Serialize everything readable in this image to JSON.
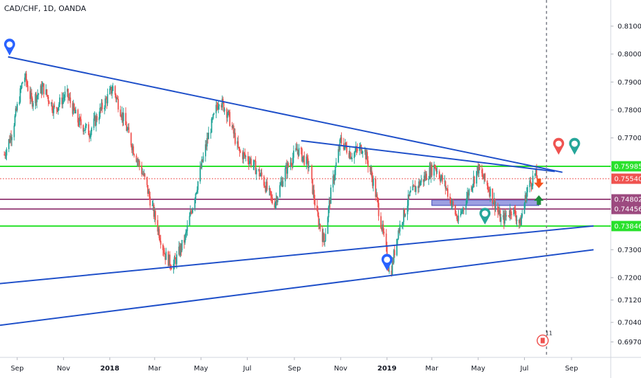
{
  "header": {
    "title": "CAD/CHF, 1D, OANDA"
  },
  "colors": {
    "up": "#26a69a",
    "down": "#ef5350",
    "trend": "#1e4fc9",
    "support": "#28e12b",
    "pivot": "#9c4a7f",
    "zone": "#7b7fd8",
    "current": "#ef5350",
    "marker_blue": "#2962ff",
    "marker_red": "#ef5350",
    "marker_green": "#26a69a"
  },
  "chart_data": {
    "type": "candlestick",
    "y_axis": {
      "range": [
        0.6945,
        0.818
      ],
      "ticks": [
        "0.81000",
        "0.80000",
        "0.79000",
        "0.78000",
        "0.77000",
        "0.73000",
        "0.72000",
        "0.71200",
        "0.70400",
        "0.69700"
      ],
      "ticks_values": [
        0.81,
        0.8,
        0.79,
        0.78,
        0.77,
        0.73,
        0.72,
        0.712,
        0.704,
        0.697
      ]
    },
    "x_axis": {
      "labels": [
        {
          "text": "Sep",
          "date": "2017-09-01",
          "bold": false
        },
        {
          "text": "Nov",
          "date": "2017-11-01",
          "bold": false
        },
        {
          "text": "2018",
          "date": "2018-01-01",
          "bold": true
        },
        {
          "text": "Mar",
          "date": "2018-03-01",
          "bold": false
        },
        {
          "text": "May",
          "date": "2018-05-01",
          "bold": false
        },
        {
          "text": "Jul",
          "date": "2018-07-01",
          "bold": false
        },
        {
          "text": "Sep",
          "date": "2018-09-01",
          "bold": false
        },
        {
          "text": "Nov",
          "date": "2018-11-01",
          "bold": false
        },
        {
          "text": "2019",
          "date": "2019-01-01",
          "bold": true
        },
        {
          "text": "Mar",
          "date": "2019-03-01",
          "bold": false
        },
        {
          "text": "May",
          "date": "2019-05-01",
          "bold": false
        },
        {
          "text": "Jul",
          "date": "2019-07-01",
          "bold": false
        },
        {
          "text": "Sep",
          "date": "2019-09-01",
          "bold": false
        }
      ]
    },
    "price_path": [
      [
        "2017-08-15",
        0.764
      ],
      [
        "2017-08-25",
        0.772
      ],
      [
        "2017-09-05",
        0.786
      ],
      [
        "2017-09-10",
        0.793
      ],
      [
        "2017-09-20",
        0.783
      ],
      [
        "2017-10-05",
        0.788
      ],
      [
        "2017-10-20",
        0.78
      ],
      [
        "2017-11-05",
        0.786
      ],
      [
        "2017-11-20",
        0.776
      ],
      [
        "2017-12-05",
        0.772
      ],
      [
        "2017-12-20",
        0.78
      ],
      [
        "2018-01-05",
        0.788
      ],
      [
        "2018-01-15",
        0.78
      ],
      [
        "2018-02-01",
        0.766
      ],
      [
        "2018-02-15",
        0.756
      ],
      [
        "2018-03-01",
        0.742
      ],
      [
        "2018-03-15",
        0.728
      ],
      [
        "2018-03-25",
        0.724
      ],
      [
        "2018-04-10",
        0.734
      ],
      [
        "2018-04-25",
        0.752
      ],
      [
        "2018-05-10",
        0.77
      ],
      [
        "2018-05-25",
        0.784
      ],
      [
        "2018-06-05",
        0.779
      ],
      [
        "2018-06-20",
        0.765
      ],
      [
        "2018-07-05",
        0.762
      ],
      [
        "2018-07-20",
        0.756
      ],
      [
        "2018-08-05",
        0.746
      ],
      [
        "2018-08-20",
        0.758
      ],
      [
        "2018-09-05",
        0.766
      ],
      [
        "2018-09-20",
        0.76
      ],
      [
        "2018-10-01",
        0.742
      ],
      [
        "2018-10-10",
        0.733
      ],
      [
        "2018-10-20",
        0.752
      ],
      [
        "2018-11-01",
        0.769
      ],
      [
        "2018-11-15",
        0.764
      ],
      [
        "2018-12-01",
        0.767
      ],
      [
        "2018-12-15",
        0.753
      ],
      [
        "2019-01-01",
        0.728
      ],
      [
        "2019-01-05",
        0.72
      ],
      [
        "2019-01-15",
        0.736
      ],
      [
        "2019-02-01",
        0.75
      ],
      [
        "2019-02-20",
        0.756
      ],
      [
        "2019-03-05",
        0.76
      ],
      [
        "2019-03-20",
        0.752
      ],
      [
        "2019-04-05",
        0.74
      ],
      [
        "2019-04-20",
        0.752
      ],
      [
        "2019-05-01",
        0.759
      ],
      [
        "2019-05-15",
        0.752
      ],
      [
        "2019-06-01",
        0.74
      ],
      [
        "2019-06-15",
        0.745
      ],
      [
        "2019-06-25",
        0.739
      ],
      [
        "2019-07-05",
        0.752
      ],
      [
        "2019-07-15",
        0.757
      ],
      [
        "2019-07-18",
        0.7554
      ]
    ],
    "horizontal_levels": [
      {
        "label": "0.75985",
        "value": 0.75985,
        "kind": "support"
      },
      {
        "label": "0.75540",
        "value": 0.7554,
        "kind": "current"
      },
      {
        "label": "0.74802",
        "value": 0.74802,
        "kind": "pivot"
      },
      {
        "label": "0.74456",
        "value": 0.74456,
        "kind": "pivot"
      },
      {
        "label": "0.73846",
        "value": 0.73846,
        "kind": "support"
      }
    ],
    "trendlines": [
      {
        "from": [
          "2017-08-20",
          0.799
        ],
        "to": [
          "2019-08-20",
          0.7577
        ]
      },
      {
        "from": [
          "2018-09-10",
          0.769
        ],
        "to": [
          "2019-08-10",
          0.758
        ]
      },
      {
        "from": [
          "2017-07-30",
          0.7176
        ],
        "to": [
          "2019-09-30",
          0.7385
        ]
      },
      {
        "from": [
          "2017-07-30",
          0.7026
        ],
        "to": [
          "2019-09-30",
          0.73
        ]
      }
    ],
    "zone": {
      "from": "2019-03-01",
      "to": "2019-07-20",
      "top": 0.7478,
      "bottom": 0.7465
    },
    "markers": [
      {
        "date": "2017-08-22",
        "price": 0.7995,
        "color": "blue"
      },
      {
        "date": "2019-01-01",
        "price": 0.7225,
        "color": "blue"
      },
      {
        "date": "2019-05-10",
        "price": 0.739,
        "color": "green"
      },
      {
        "date": "2019-08-15",
        "price": 0.764,
        "color": "red"
      },
      {
        "date": "2019-09-05",
        "price": 0.764,
        "color": "green"
      }
    ],
    "arrows": [
      {
        "date": "2019-07-20",
        "price": 0.7535,
        "direction": "down"
      },
      {
        "date": "2019-07-20",
        "price": 0.748,
        "direction": "up"
      }
    ],
    "event": {
      "date": "2019-07-25",
      "price": 0.6975,
      "badge": "11"
    },
    "session_line_date": "2019-07-30"
  }
}
